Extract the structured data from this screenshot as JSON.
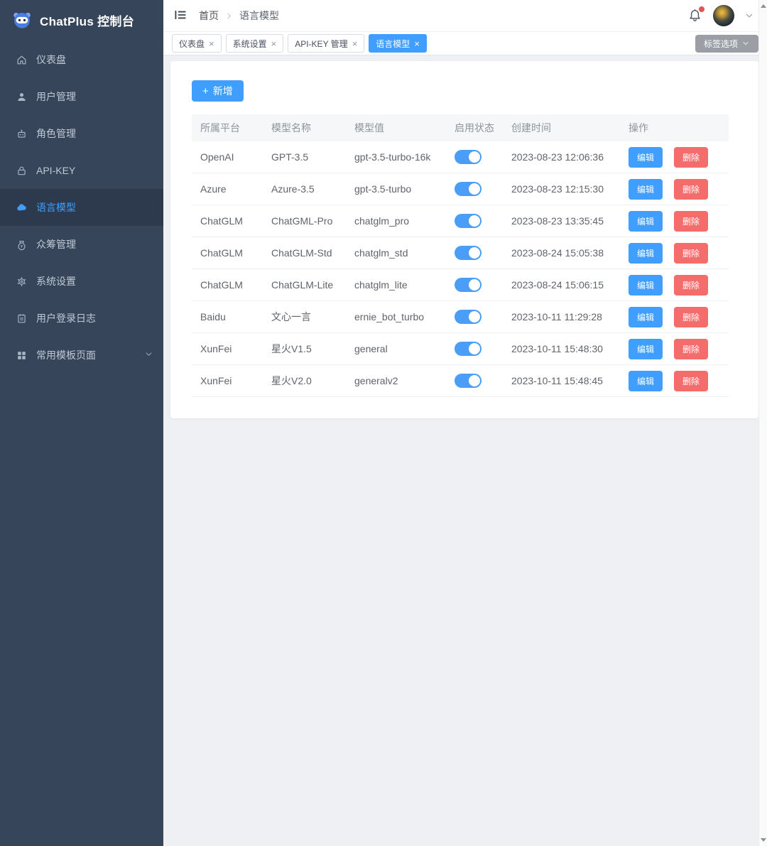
{
  "app": {
    "title": "ChatPlus 控制台"
  },
  "sidebar": {
    "items": [
      {
        "label": "仪表盘",
        "icon": "dashboard-icon",
        "symbol": "home",
        "active": false
      },
      {
        "label": "用户管理",
        "icon": "users-icon",
        "symbol": "user",
        "active": false
      },
      {
        "label": "角色管理",
        "icon": "roles-icon",
        "symbol": "robot",
        "active": false
      },
      {
        "label": "API-KEY",
        "icon": "apikey-icon",
        "symbol": "lock",
        "active": false
      },
      {
        "label": "语言模型",
        "icon": "models-icon",
        "symbol": "cloud",
        "active": true
      },
      {
        "label": "众筹管理",
        "icon": "funding-icon",
        "symbol": "fund",
        "active": false
      },
      {
        "label": "系统设置",
        "icon": "settings-icon",
        "symbol": "gear",
        "active": false
      },
      {
        "label": "用户登录日志",
        "icon": "login-log-icon",
        "symbol": "log",
        "active": false
      },
      {
        "label": "常用模板页面",
        "icon": "templates-icon",
        "symbol": "grid",
        "active": false,
        "expandable": true
      }
    ]
  },
  "header": {
    "breadcrumb": [
      "首页",
      "语言模型"
    ],
    "notifications_badge": true
  },
  "tabbar": {
    "tabs": [
      {
        "label": "仪表盘",
        "active": false
      },
      {
        "label": "系统设置",
        "active": false
      },
      {
        "label": "API-KEY 管理",
        "active": false
      },
      {
        "label": "语言模型",
        "active": true
      }
    ],
    "tag_options_label": "标签选项"
  },
  "content": {
    "add_button_label": "新增",
    "table": {
      "columns": [
        "所属平台",
        "模型名称",
        "模型值",
        "启用状态",
        "创建时间",
        "操作"
      ],
      "edit_label": "编辑",
      "delete_label": "删除",
      "rows": [
        {
          "platform": "OpenAI",
          "name": "GPT-3.5",
          "value": "gpt-3.5-turbo-16k",
          "enabled": true,
          "created": "2023-08-23 12:06:36"
        },
        {
          "platform": "Azure",
          "name": "Azure-3.5",
          "value": "gpt-3.5-turbo",
          "enabled": true,
          "created": "2023-08-23 12:15:30"
        },
        {
          "platform": "ChatGLM",
          "name": "ChatGML-Pro",
          "value": "chatglm_pro",
          "enabled": true,
          "created": "2023-08-23 13:35:45"
        },
        {
          "platform": "ChatGLM",
          "name": "ChatGLM-Std",
          "value": "chatglm_std",
          "enabled": true,
          "created": "2023-08-24 15:05:38"
        },
        {
          "platform": "ChatGLM",
          "name": "ChatGLM-Lite",
          "value": "chatglm_lite",
          "enabled": true,
          "created": "2023-08-24 15:06:15"
        },
        {
          "platform": "Baidu",
          "name": "文心一言",
          "value": "ernie_bot_turbo",
          "enabled": true,
          "created": "2023-10-11 11:29:28"
        },
        {
          "platform": "XunFei",
          "name": "星火V1.5",
          "value": "general",
          "enabled": true,
          "created": "2023-10-11 15:48:30"
        },
        {
          "platform": "XunFei",
          "name": "星火V2.0",
          "value": "generalv2",
          "enabled": true,
          "created": "2023-10-11 15:48:45"
        }
      ]
    }
  },
  "colors": {
    "primary": "#409eff",
    "danger": "#f56c6c",
    "sidebar_bg": "#37455a",
    "sidebar_active_bg": "#2d3a4d",
    "page_bg": "#eef0f3",
    "badge_red": "#e55353",
    "tag_options_bg": "#9b9fa5"
  }
}
